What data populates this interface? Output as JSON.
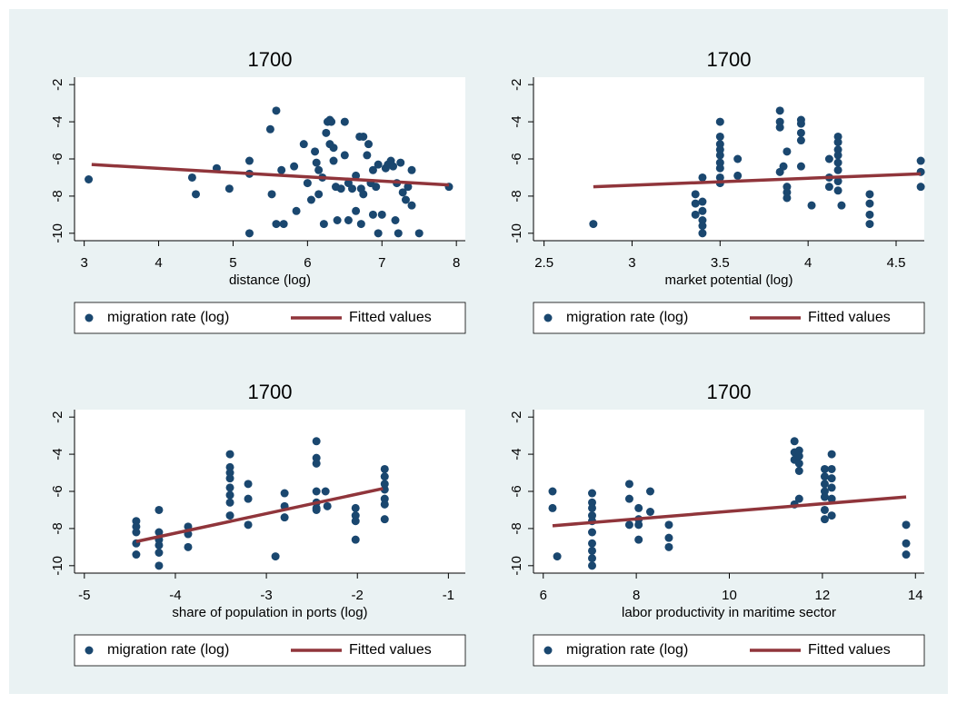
{
  "chart_data": [
    {
      "type": "scatter",
      "title": "1700",
      "x_label": "distance (log)",
      "xlim": [
        2.87,
        8.12
      ],
      "ylim": [
        -10.4,
        -1.6
      ],
      "xticks": [
        3,
        4,
        5,
        6,
        7,
        8
      ],
      "yticks": [
        -2,
        -4,
        -6,
        -8,
        -10
      ],
      "series": [
        {
          "name": "migration rate (log)",
          "type": "scatter",
          "color": "#1a476f",
          "x": [
            3.06,
            4.45,
            4.5,
            4.78,
            4.95,
            5.22,
            5.22,
            5.22,
            5.5,
            5.52,
            5.58,
            5.58,
            5.65,
            5.68,
            5.82,
            5.85,
            5.95,
            6.0,
            6.05,
            6.1,
            6.12,
            6.15,
            6.15,
            6.2,
            6.22,
            6.25,
            6.27,
            6.3,
            6.32,
            6.3,
            6.35,
            6.35,
            6.38,
            6.4,
            6.45,
            6.5,
            6.5,
            6.55,
            6.55,
            6.6,
            6.65,
            6.65,
            6.7,
            6.72,
            6.72,
            6.75,
            6.75,
            6.8,
            6.82,
            6.85,
            6.88,
            6.88,
            6.92,
            6.95,
            6.95,
            7.0,
            7.05,
            7.08,
            7.12,
            7.15,
            7.18,
            7.2,
            7.22,
            7.25,
            7.28,
            7.32,
            7.35,
            7.4,
            7.4,
            7.5,
            7.9
          ],
          "values": [
            -7.1,
            -7.0,
            -7.9,
            -6.5,
            -7.6,
            -6.1,
            -6.8,
            -10,
            -4.4,
            -7.9,
            -3.4,
            -9.5,
            -6.6,
            -9.5,
            -6.4,
            -8.8,
            -5.2,
            -7.3,
            -8.2,
            -5.6,
            -6.2,
            -6.6,
            -7.9,
            -7.0,
            -9.5,
            -4.6,
            -4.0,
            -3.9,
            -4.0,
            -5.2,
            -5.4,
            -6.1,
            -7.5,
            -9.3,
            -7.6,
            -4.0,
            -5.8,
            -7.3,
            -9.3,
            -7.6,
            -8.8,
            -6.9,
            -4.8,
            -7.6,
            -9.5,
            -4.8,
            -7.9,
            -5.8,
            -5.2,
            -7.3,
            -6.6,
            -9.0,
            -7.5,
            -6.3,
            -10,
            -9.0,
            -6.5,
            -6.3,
            -6.1,
            -6.4,
            -9.3,
            -7.3,
            -10,
            -6.2,
            -7.8,
            -8.2,
            -7.5,
            -6.6,
            -8.5,
            -10,
            -7.5
          ]
        },
        {
          "name": "Fitted values",
          "type": "line",
          "color": "#90353b",
          "x": [
            3.1,
            7.9
          ],
          "values": [
            -6.3,
            -7.4
          ]
        }
      ]
    },
    {
      "type": "scatter",
      "title": "1700",
      "x_label": "market potential (log)",
      "xlim": [
        2.44,
        4.66
      ],
      "ylim": [
        -10.4,
        -1.6
      ],
      "xticks": [
        2.5,
        3,
        3.5,
        4,
        4.5
      ],
      "yticks": [
        -2,
        -4,
        -6,
        -8,
        -10
      ],
      "series": [
        {
          "name": "migration rate (log)",
          "type": "scatter",
          "color": "#1a476f",
          "x": [
            2.78,
            3.36,
            3.36,
            3.36,
            3.4,
            3.4,
            3.4,
            3.4,
            3.4,
            3.4,
            3.5,
            3.5,
            3.5,
            3.5,
            3.5,
            3.5,
            3.5,
            3.5,
            3.5,
            3.6,
            3.6,
            3.84,
            3.84,
            3.84,
            3.84,
            3.86,
            3.88,
            3.88,
            3.88,
            3.88,
            3.96,
            3.96,
            3.96,
            3.96,
            3.96,
            4.02,
            4.12,
            4.12,
            4.12,
            4.17,
            4.17,
            4.17,
            4.17,
            4.17,
            4.17,
            4.17,
            4.17,
            4.19,
            4.35,
            4.35,
            4.35,
            4.35,
            4.64,
            4.64,
            4.64
          ],
          "values": [
            -9.5,
            -7.9,
            -8.4,
            -9.0,
            -7.0,
            -8.3,
            -8.8,
            -9.3,
            -9.6,
            -10,
            -4.0,
            -4.8,
            -5.2,
            -5.5,
            -5.8,
            -6.2,
            -6.5,
            -7.0,
            -7.3,
            -6.0,
            -6.9,
            -3.4,
            -4.0,
            -4.3,
            -6.7,
            -6.4,
            -5.6,
            -7.5,
            -7.8,
            -8.1,
            -3.9,
            -4.1,
            -4.6,
            -5.0,
            -6.4,
            -8.5,
            -6.0,
            -7.0,
            -7.5,
            -4.8,
            -5.1,
            -5.5,
            -5.8,
            -6.2,
            -6.6,
            -7.2,
            -7.7,
            -8.5,
            -7.9,
            -8.4,
            -9.0,
            -9.5,
            -6.1,
            -6.7,
            -7.5
          ]
        },
        {
          "name": "Fitted values",
          "type": "line",
          "color": "#90353b",
          "x": [
            2.78,
            4.64
          ],
          "values": [
            -7.5,
            -6.8
          ]
        }
      ]
    },
    {
      "type": "scatter",
      "title": "1700",
      "x_label": "share of population in ports (log)",
      "xlim": [
        -5.108,
        -0.814
      ],
      "ylim": [
        -10.4,
        -1.6
      ],
      "xticks": [
        -5,
        -4,
        -3,
        -2,
        -1
      ],
      "yticks": [
        -2,
        -4,
        -6,
        -8,
        -10
      ],
      "series": [
        {
          "name": "migration rate (log)",
          "type": "scatter",
          "color": "#1a476f",
          "x": [
            -4.43,
            -4.43,
            -4.43,
            -4.43,
            -4.43,
            -4.18,
            -4.18,
            -4.18,
            -4.18,
            -4.18,
            -4.18,
            -3.86,
            -3.86,
            -3.86,
            -3.4,
            -3.4,
            -3.4,
            -3.4,
            -3.4,
            -3.4,
            -3.4,
            -3.4,
            -3.2,
            -3.2,
            -3.2,
            -2.9,
            -2.8,
            -2.8,
            -2.8,
            -2.45,
            -2.45,
            -2.45,
            -2.45,
            -2.45,
            -2.45,
            -2.45,
            -2.35,
            -2.33,
            -2.02,
            -2.02,
            -2.02,
            -2.02,
            -1.7,
            -1.7,
            -1.7,
            -1.7,
            -1.7,
            -1.7,
            -1.7
          ],
          "values": [
            -7.6,
            -7.9,
            -8.2,
            -8.8,
            -9.4,
            -7.0,
            -8.2,
            -8.6,
            -8.9,
            -9.3,
            -10,
            -7.9,
            -8.3,
            -9.0,
            -4.0,
            -4.7,
            -5.0,
            -5.3,
            -5.8,
            -6.2,
            -6.6,
            -7.3,
            -5.6,
            -6.4,
            -7.8,
            -9.5,
            -6.1,
            -6.8,
            -7.4,
            -3.3,
            -4.2,
            -4.5,
            -6.0,
            -6.6,
            -6.9,
            -7.0,
            -6.0,
            -6.8,
            -6.9,
            -7.3,
            -7.6,
            -8.6,
            -4.8,
            -5.2,
            -5.6,
            -5.9,
            -6.4,
            -6.7,
            -7.5
          ]
        },
        {
          "name": "Fitted values",
          "type": "line",
          "color": "#90353b",
          "x": [
            -4.43,
            -1.72
          ],
          "values": [
            -8.7,
            -5.85
          ]
        }
      ]
    },
    {
      "type": "scatter",
      "title": "1700",
      "x_label": "labor productivity in maritime sector",
      "xlim": [
        5.79,
        14.19
      ],
      "ylim": [
        -10.4,
        -1.6
      ],
      "xticks": [
        6,
        8,
        10,
        12,
        14
      ],
      "yticks": [
        -2,
        -4,
        -6,
        -8,
        -10
      ],
      "series": [
        {
          "name": "migration rate (log)",
          "type": "scatter",
          "color": "#1a476f",
          "x": [
            6.2,
            6.2,
            6.3,
            7.05,
            7.05,
            7.05,
            7.05,
            7.05,
            7.05,
            7.05,
            7.05,
            7.05,
            7.05,
            7.85,
            7.85,
            7.85,
            8.05,
            8.05,
            8.05,
            8.05,
            8.3,
            8.3,
            8.7,
            8.7,
            8.7,
            11.4,
            11.4,
            11.4,
            11.4,
            11.5,
            11.5,
            11.5,
            11.5,
            11.5,
            12.05,
            12.05,
            12.05,
            12.05,
            12.05,
            12.05,
            12.05,
            12.2,
            12.2,
            12.2,
            12.2,
            12.2,
            12.2,
            13.8,
            13.8,
            13.8
          ],
          "values": [
            -6.0,
            -6.9,
            -9.5,
            -6.1,
            -6.6,
            -6.9,
            -7.3,
            -7.6,
            -8.2,
            -8.8,
            -9.2,
            -9.6,
            -10,
            -5.6,
            -6.4,
            -7.8,
            -6.9,
            -7.5,
            -7.8,
            -8.6,
            -6.0,
            -7.1,
            -7.8,
            -8.5,
            -9.0,
            -3.3,
            -3.9,
            -4.3,
            -6.7,
            -3.8,
            -4.1,
            -4.5,
            -4.9,
            -6.4,
            -4.8,
            -5.2,
            -5.6,
            -6.0,
            -6.3,
            -7.0,
            -7.5,
            -4.0,
            -4.8,
            -5.3,
            -5.8,
            -6.4,
            -7.3,
            -7.8,
            -8.8,
            -9.4
          ]
        },
        {
          "name": "Fitted values",
          "type": "line",
          "color": "#90353b",
          "x": [
            6.2,
            13.8
          ],
          "values": [
            -7.85,
            -6.3
          ]
        }
      ]
    }
  ]
}
